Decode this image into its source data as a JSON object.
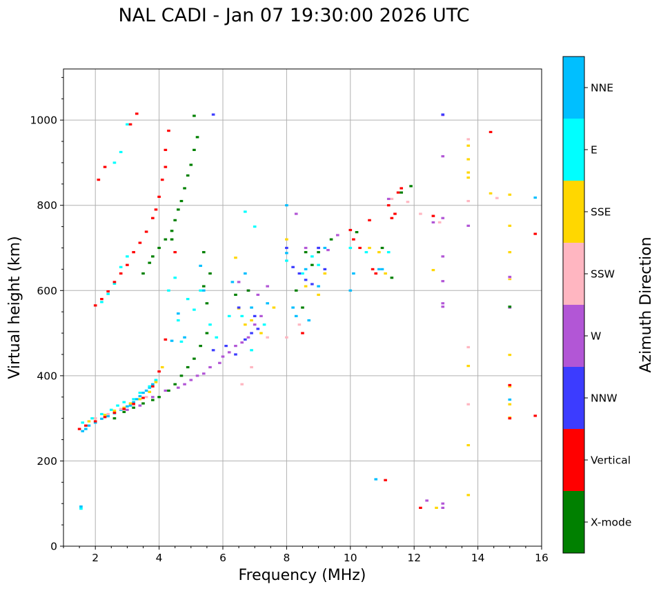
{
  "chart_data": {
    "type": "scatter",
    "title": "NAL CADI - Jan 07 19:30:00 2026 UTC",
    "xlabel": "Frequency (MHz)",
    "ylabel": "Virtual height (km)",
    "xlim": [
      1,
      16
    ],
    "ylim": [
      0,
      1120
    ],
    "xticks": [
      2,
      4,
      6,
      8,
      10,
      12,
      14,
      16
    ],
    "yticks": [
      0,
      200,
      400,
      600,
      800,
      1000
    ],
    "grid": true,
    "colorbar": {
      "label": "Azimuth Direction",
      "location": "right",
      "categories": [
        {
          "name": "X-mode",
          "color": "#008000"
        },
        {
          "name": "Vertical",
          "color": "#ff0000"
        },
        {
          "name": "NNW",
          "color": "#3c3cff"
        },
        {
          "name": "W",
          "color": "#b256d6"
        },
        {
          "name": "SSW",
          "color": "#ffb6c1"
        },
        {
          "name": "SSE",
          "color": "#ffd700"
        },
        {
          "name": "E",
          "color": "#00ffff"
        },
        {
          "name": "NNE",
          "color": "#00bfff"
        }
      ]
    },
    "series": [
      {
        "name": "NNE",
        "points": [
          [
            1.55,
            93
          ],
          [
            1.6,
            270
          ],
          [
            1.7,
            275
          ],
          [
            1.8,
            283
          ],
          [
            2.0,
            290
          ],
          [
            2.2,
            299
          ],
          [
            2.4,
            305
          ],
          [
            2.6,
            312
          ],
          [
            2.8,
            320
          ],
          [
            3.0,
            328
          ],
          [
            3.1,
            330
          ],
          [
            3.2,
            338
          ],
          [
            3.3,
            345
          ],
          [
            3.4,
            352
          ],
          [
            3.5,
            360
          ],
          [
            3.6,
            365
          ],
          [
            3.7,
            372
          ],
          [
            3.8,
            380
          ],
          [
            3.9,
            388
          ],
          [
            4.4,
            482
          ],
          [
            4.6,
            546
          ],
          [
            4.8,
            490
          ],
          [
            5.3,
            658
          ],
          [
            5.4,
            600
          ],
          [
            6.3,
            620
          ],
          [
            6.7,
            640
          ],
          [
            6.9,
            560
          ],
          [
            7.4,
            570
          ],
          [
            8.0,
            800
          ],
          [
            8.0,
            688
          ],
          [
            8.2,
            560
          ],
          [
            8.3,
            540
          ],
          [
            8.6,
            650
          ],
          [
            8.7,
            530
          ],
          [
            9.0,
            610
          ],
          [
            9.2,
            700
          ],
          [
            10.0,
            600
          ],
          [
            10.1,
            640
          ],
          [
            10.8,
            157
          ],
          [
            10.9,
            650
          ],
          [
            11.0,
            650
          ],
          [
            15.0,
            344
          ],
          [
            15.8,
            818
          ]
        ]
      },
      {
        "name": "E",
        "points": [
          [
            1.55,
            88
          ],
          [
            1.6,
            290
          ],
          [
            1.9,
            300
          ],
          [
            2.2,
            310
          ],
          [
            2.5,
            320
          ],
          [
            2.7,
            330
          ],
          [
            2.9,
            338
          ],
          [
            3.2,
            345
          ],
          [
            3.4,
            360
          ],
          [
            3.7,
            375
          ],
          [
            3.9,
            390
          ],
          [
            2.2,
            573
          ],
          [
            2.4,
            592
          ],
          [
            2.6,
            616
          ],
          [
            2.8,
            655
          ],
          [
            3.0,
            680
          ],
          [
            2.6,
            900
          ],
          [
            2.8,
            925
          ],
          [
            3.0,
            990
          ],
          [
            4.3,
            600
          ],
          [
            4.5,
            630
          ],
          [
            4.6,
            530
          ],
          [
            4.7,
            480
          ],
          [
            4.9,
            580
          ],
          [
            5.1,
            555
          ],
          [
            5.3,
            600
          ],
          [
            5.6,
            520
          ],
          [
            5.8,
            490
          ],
          [
            6.2,
            540
          ],
          [
            6.6,
            540
          ],
          [
            6.7,
            785
          ],
          [
            6.9,
            460
          ],
          [
            7.0,
            750
          ],
          [
            7.3,
            520
          ],
          [
            8.0,
            670
          ],
          [
            8.5,
            640
          ],
          [
            8.8,
            680
          ],
          [
            9.0,
            660
          ],
          [
            10.0,
            700
          ],
          [
            10.5,
            690
          ],
          [
            11.2,
            690
          ]
        ]
      },
      {
        "name": "SSE",
        "points": [
          [
            1.8,
            293
          ],
          [
            2.0,
            300
          ],
          [
            2.3,
            308
          ],
          [
            2.6,
            318
          ],
          [
            2.9,
            325
          ],
          [
            3.1,
            335
          ],
          [
            3.4,
            345
          ],
          [
            3.7,
            362
          ],
          [
            3.9,
            385
          ],
          [
            4.1,
            420
          ],
          [
            6.4,
            677
          ],
          [
            6.5,
            558
          ],
          [
            6.7,
            520
          ],
          [
            6.9,
            530
          ],
          [
            7.2,
            500
          ],
          [
            7.6,
            560
          ],
          [
            8.0,
            720
          ],
          [
            8.6,
            610
          ],
          [
            9.0,
            590
          ],
          [
            9.2,
            640
          ],
          [
            10.6,
            700
          ],
          [
            10.9,
            690
          ],
          [
            11.1,
            640
          ],
          [
            12.6,
            648
          ],
          [
            12.7,
            90
          ],
          [
            13.7,
            940
          ],
          [
            13.7,
            908
          ],
          [
            13.7,
            877
          ],
          [
            13.7,
            865
          ],
          [
            13.7,
            423
          ],
          [
            13.7,
            237
          ],
          [
            13.7,
            120
          ],
          [
            14.4,
            828
          ],
          [
            15.0,
            825
          ],
          [
            15.0,
            752
          ],
          [
            15.0,
            690
          ],
          [
            15.0,
            627
          ],
          [
            15.0,
            449
          ],
          [
            15.0,
            375
          ],
          [
            15.0,
            333
          ],
          [
            15.0,
            302
          ]
        ]
      },
      {
        "name": "SSW",
        "points": [
          [
            2.0,
            300
          ],
          [
            2.4,
            310
          ],
          [
            2.8,
            322
          ],
          [
            3.2,
            332
          ],
          [
            3.6,
            350
          ],
          [
            6.6,
            380
          ],
          [
            6.9,
            420
          ],
          [
            7.4,
            490
          ],
          [
            8.0,
            490
          ],
          [
            8.4,
            520
          ],
          [
            11.3,
            815
          ],
          [
            11.8,
            808
          ],
          [
            12.2,
            780
          ],
          [
            12.6,
            775
          ],
          [
            12.8,
            760
          ],
          [
            13.7,
            955
          ],
          [
            13.7,
            810
          ],
          [
            13.7,
            467
          ],
          [
            13.7,
            333
          ],
          [
            14.6,
            817
          ],
          [
            15.0,
            630
          ]
        ]
      },
      {
        "name": "W",
        "points": [
          [
            3.0,
            320
          ],
          [
            3.4,
            330
          ],
          [
            3.8,
            350
          ],
          [
            4.2,
            365
          ],
          [
            4.6,
            372
          ],
          [
            4.8,
            380
          ],
          [
            5.0,
            390
          ],
          [
            5.2,
            400
          ],
          [
            5.4,
            405
          ],
          [
            5.6,
            420
          ],
          [
            5.9,
            430
          ],
          [
            6.0,
            445
          ],
          [
            6.2,
            455
          ],
          [
            6.4,
            470
          ],
          [
            6.6,
            478
          ],
          [
            6.8,
            490
          ],
          [
            7.0,
            520
          ],
          [
            7.2,
            540
          ],
          [
            6.5,
            620
          ],
          [
            6.8,
            600
          ],
          [
            7.1,
            590
          ],
          [
            7.4,
            610
          ],
          [
            8.3,
            780
          ],
          [
            8.6,
            700
          ],
          [
            9.0,
            700
          ],
          [
            9.3,
            695
          ],
          [
            9.6,
            730
          ],
          [
            11.2,
            815
          ],
          [
            12.4,
            107
          ],
          [
            12.6,
            760
          ],
          [
            12.9,
            1012
          ],
          [
            12.9,
            915
          ],
          [
            12.9,
            770
          ],
          [
            12.9,
            680
          ],
          [
            12.9,
            622
          ],
          [
            12.9,
            570
          ],
          [
            12.9,
            562
          ],
          [
            12.9,
            100
          ],
          [
            12.9,
            90
          ],
          [
            13.7,
            752
          ],
          [
            15.0,
            632
          ],
          [
            15.0,
            560
          ]
        ]
      },
      {
        "name": "NNW",
        "points": [
          [
            5.7,
            460
          ],
          [
            6.1,
            470
          ],
          [
            6.4,
            450
          ],
          [
            6.7,
            485
          ],
          [
            6.9,
            500
          ],
          [
            7.1,
            510
          ],
          [
            6.5,
            560
          ],
          [
            7.0,
            540
          ],
          [
            8.0,
            700
          ],
          [
            8.2,
            655
          ],
          [
            8.4,
            640
          ],
          [
            8.6,
            625
          ],
          [
            8.8,
            615
          ],
          [
            9.0,
            700
          ],
          [
            9.2,
            650
          ],
          [
            5.7,
            1013
          ],
          [
            12.9,
            1013
          ]
        ]
      },
      {
        "name": "Vertical",
        "points": [
          [
            1.5,
            275
          ],
          [
            1.7,
            283
          ],
          [
            2.0,
            293
          ],
          [
            2.3,
            303
          ],
          [
            2.6,
            313
          ],
          [
            2.9,
            322
          ],
          [
            3.2,
            334
          ],
          [
            3.5,
            348
          ],
          [
            3.8,
            375
          ],
          [
            4.0,
            410
          ],
          [
            4.2,
            485
          ],
          [
            2.0,
            565
          ],
          [
            2.2,
            580
          ],
          [
            2.4,
            598
          ],
          [
            2.6,
            620
          ],
          [
            2.8,
            640
          ],
          [
            3.0,
            660
          ],
          [
            3.2,
            690
          ],
          [
            3.4,
            712
          ],
          [
            3.6,
            738
          ],
          [
            3.8,
            770
          ],
          [
            3.9,
            790
          ],
          [
            4.0,
            820
          ],
          [
            4.1,
            860
          ],
          [
            4.2,
            890
          ],
          [
            4.2,
            930
          ],
          [
            4.3,
            975
          ],
          [
            2.1,
            860
          ],
          [
            2.3,
            890
          ],
          [
            3.1,
            990
          ],
          [
            3.3,
            1015
          ],
          [
            4.5,
            690
          ],
          [
            8.5,
            500
          ],
          [
            10.0,
            742
          ],
          [
            10.1,
            720
          ],
          [
            10.3,
            700
          ],
          [
            10.6,
            765
          ],
          [
            10.7,
            650
          ],
          [
            10.8,
            640
          ],
          [
            11.1,
            155
          ],
          [
            11.2,
            800
          ],
          [
            11.3,
            770
          ],
          [
            11.4,
            780
          ],
          [
            11.5,
            830
          ],
          [
            11.6,
            840
          ],
          [
            12.2,
            90
          ],
          [
            12.6,
            775
          ],
          [
            14.4,
            972
          ],
          [
            15.0,
            378
          ],
          [
            15.0,
            300
          ],
          [
            15.8,
            733
          ],
          [
            15.8,
            306
          ]
        ]
      },
      {
        "name": "X-mode",
        "points": [
          [
            2.6,
            300
          ],
          [
            2.9,
            315
          ],
          [
            3.2,
            325
          ],
          [
            3.5,
            335
          ],
          [
            3.8,
            343
          ],
          [
            4.0,
            350
          ],
          [
            4.3,
            365
          ],
          [
            4.5,
            380
          ],
          [
            4.7,
            400
          ],
          [
            4.9,
            420
          ],
          [
            5.1,
            440
          ],
          [
            5.3,
            470
          ],
          [
            5.5,
            500
          ],
          [
            3.5,
            640
          ],
          [
            3.7,
            665
          ],
          [
            3.8,
            680
          ],
          [
            4.0,
            700
          ],
          [
            4.2,
            720
          ],
          [
            4.4,
            740
          ],
          [
            4.5,
            765
          ],
          [
            4.6,
            790
          ],
          [
            4.7,
            810
          ],
          [
            4.8,
            840
          ],
          [
            4.9,
            870
          ],
          [
            5.0,
            895
          ],
          [
            5.1,
            930
          ],
          [
            5.2,
            960
          ],
          [
            5.1,
            1010
          ],
          [
            5.4,
            610
          ],
          [
            5.5,
            570
          ],
          [
            5.6,
            640
          ],
          [
            5.4,
            690
          ],
          [
            4.4,
            720
          ],
          [
            6.4,
            590
          ],
          [
            6.8,
            600
          ],
          [
            8.3,
            600
          ],
          [
            8.5,
            560
          ],
          [
            8.6,
            690
          ],
          [
            8.8,
            660
          ],
          [
            9.0,
            690
          ],
          [
            9.4,
            720
          ],
          [
            10.2,
            737
          ],
          [
            11.0,
            700
          ],
          [
            11.3,
            630
          ],
          [
            11.6,
            830
          ],
          [
            11.9,
            845
          ],
          [
            15.0,
            562
          ]
        ]
      }
    ]
  }
}
